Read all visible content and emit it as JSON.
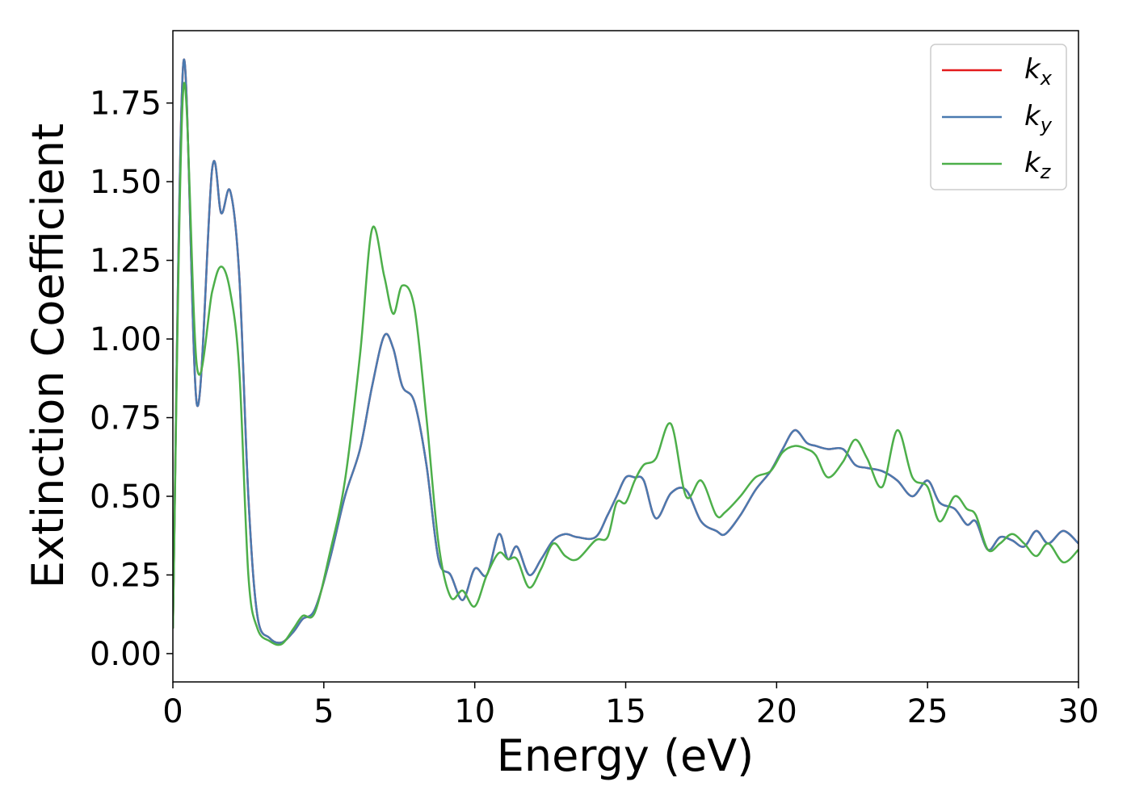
{
  "chart_data": {
    "type": "line",
    "xlabel": "Energy (eV)",
    "ylabel": "Extinction Coefficient",
    "x": [
      0,
      0.35,
      0.8,
      1.3,
      1.6,
      1.9,
      2.2,
      2.5,
      2.8,
      3.2,
      3.6,
      4.0,
      4.3,
      4.7,
      5.2,
      5.7,
      6.2,
      6.6,
      7.0,
      7.3,
      7.6,
      8.0,
      8.4,
      8.8,
      9.2,
      9.6,
      10.0,
      10.4,
      10.8,
      11.1,
      11.4,
      11.8,
      12.2,
      12.6,
      13.0,
      13.4,
      14.0,
      14.4,
      14.7,
      15.0,
      15.3,
      15.6,
      16.0,
      16.5,
      17.0,
      17.5,
      18.0,
      18.3,
      18.8,
      19.3,
      19.8,
      20.2,
      20.6,
      21.0,
      21.3,
      21.7,
      22.2,
      22.6,
      23.0,
      23.5,
      24.0,
      24.5,
      25.0,
      25.4,
      25.9,
      26.3,
      26.6,
      27.0,
      27.4,
      27.8,
      28.2,
      28.6,
      29.0,
      29.5,
      30.0
    ],
    "series": [
      {
        "name": "kx",
        "color": "#e41a1c",
        "values": [
          0.08,
          1.88,
          0.79,
          1.54,
          1.4,
          1.47,
          1.2,
          0.5,
          0.12,
          0.05,
          0.035,
          0.07,
          0.11,
          0.14,
          0.3,
          0.5,
          0.65,
          0.85,
          1.01,
          0.97,
          0.85,
          0.8,
          0.6,
          0.3,
          0.25,
          0.17,
          0.27,
          0.25,
          0.38,
          0.3,
          0.34,
          0.25,
          0.3,
          0.36,
          0.38,
          0.37,
          0.37,
          0.44,
          0.5,
          0.56,
          0.56,
          0.55,
          0.43,
          0.51,
          0.52,
          0.42,
          0.39,
          0.38,
          0.44,
          0.52,
          0.58,
          0.65,
          0.71,
          0.67,
          0.66,
          0.65,
          0.65,
          0.6,
          0.59,
          0.58,
          0.55,
          0.5,
          0.55,
          0.48,
          0.46,
          0.41,
          0.42,
          0.33,
          0.37,
          0.36,
          0.34,
          0.39,
          0.35,
          0.39,
          0.35
        ]
      },
      {
        "name": "ky",
        "color": "#4a7ab0",
        "values": [
          0.08,
          1.88,
          0.79,
          1.54,
          1.4,
          1.47,
          1.2,
          0.5,
          0.12,
          0.05,
          0.035,
          0.07,
          0.11,
          0.14,
          0.3,
          0.5,
          0.65,
          0.85,
          1.01,
          0.97,
          0.85,
          0.8,
          0.6,
          0.3,
          0.25,
          0.17,
          0.27,
          0.25,
          0.38,
          0.3,
          0.34,
          0.25,
          0.3,
          0.36,
          0.38,
          0.37,
          0.37,
          0.44,
          0.5,
          0.56,
          0.56,
          0.55,
          0.43,
          0.51,
          0.52,
          0.42,
          0.39,
          0.38,
          0.44,
          0.52,
          0.58,
          0.65,
          0.71,
          0.67,
          0.66,
          0.65,
          0.65,
          0.6,
          0.59,
          0.58,
          0.55,
          0.5,
          0.55,
          0.48,
          0.46,
          0.41,
          0.42,
          0.33,
          0.37,
          0.36,
          0.34,
          0.39,
          0.35,
          0.39,
          0.35
        ]
      },
      {
        "name": "kz",
        "color": "#4daf4a",
        "values": [
          0.08,
          1.8,
          0.91,
          1.15,
          1.23,
          1.15,
          0.9,
          0.25,
          0.08,
          0.04,
          0.03,
          0.08,
          0.12,
          0.13,
          0.32,
          0.55,
          0.95,
          1.35,
          1.2,
          1.08,
          1.17,
          1.1,
          0.75,
          0.35,
          0.18,
          0.2,
          0.15,
          0.25,
          0.32,
          0.3,
          0.3,
          0.21,
          0.27,
          0.35,
          0.31,
          0.3,
          0.36,
          0.37,
          0.48,
          0.48,
          0.55,
          0.6,
          0.62,
          0.73,
          0.5,
          0.55,
          0.44,
          0.45,
          0.5,
          0.56,
          0.58,
          0.64,
          0.66,
          0.65,
          0.63,
          0.56,
          0.61,
          0.68,
          0.62,
          0.53,
          0.71,
          0.56,
          0.53,
          0.42,
          0.5,
          0.46,
          0.44,
          0.33,
          0.35,
          0.38,
          0.35,
          0.31,
          0.35,
          0.29,
          0.33
        ]
      }
    ],
    "xlim": [
      0,
      30
    ],
    "xticks": [
      0,
      5,
      10,
      15,
      20,
      25,
      30
    ],
    "ylim": [
      -0.09,
      1.98
    ],
    "yticks": [
      {
        "value": 0,
        "label": "0.00"
      },
      {
        "value": 0.25,
        "label": "0.25"
      },
      {
        "value": 0.5,
        "label": "0.50"
      },
      {
        "value": 0.75,
        "label": "0.75"
      },
      {
        "value": 1.0,
        "label": "1.00"
      },
      {
        "value": 1.25,
        "label": "1.25"
      },
      {
        "value": 1.5,
        "label": "1.50"
      },
      {
        "value": 1.75,
        "label": "1.75"
      }
    ],
    "legend": "upper right",
    "grid": false
  }
}
